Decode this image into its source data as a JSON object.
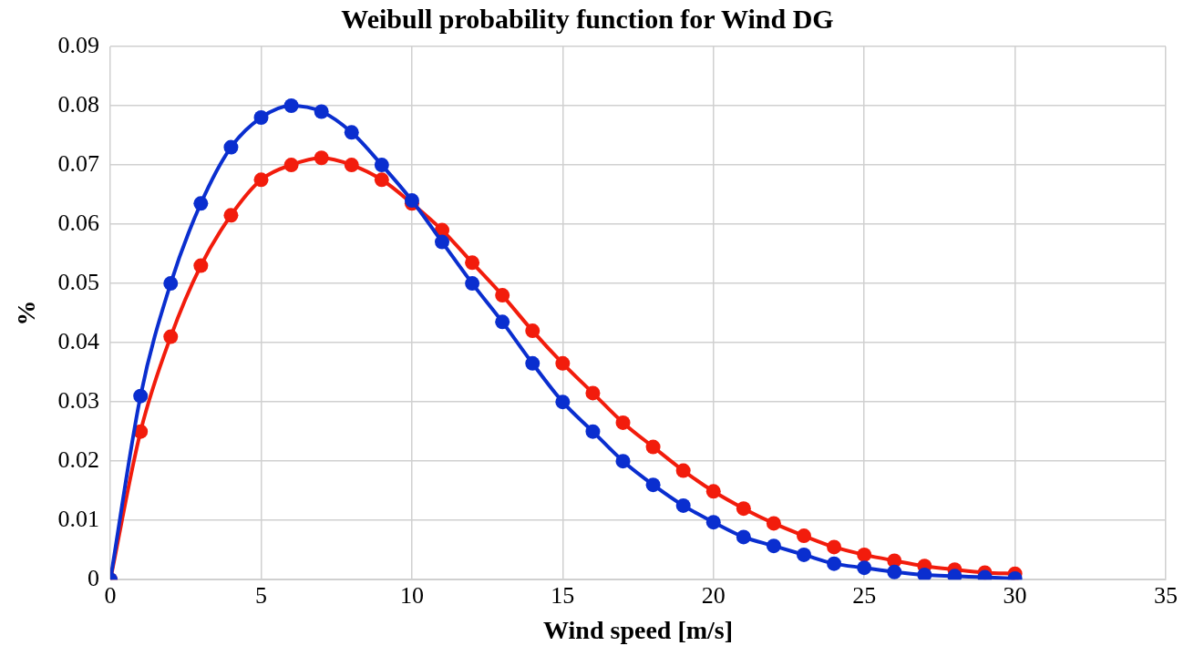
{
  "chart_data": {
    "type": "line",
    "title": "Weibull probability function for Wind DG",
    "xlabel": "Wind speed [m/s]",
    "ylabel": "%",
    "x": [
      0,
      1,
      2,
      3,
      4,
      5,
      6,
      7,
      8,
      9,
      10,
      11,
      12,
      13,
      14,
      15,
      16,
      17,
      18,
      19,
      20,
      21,
      22,
      23,
      24,
      25,
      26,
      27,
      28,
      29,
      30
    ],
    "series": [
      {
        "color": "#0a2ecf",
        "values": [
          0,
          0.031,
          0.05,
          0.0635,
          0.073,
          0.078,
          0.08,
          0.079,
          0.0755,
          0.07,
          0.064,
          0.057,
          0.05,
          0.0435,
          0.0365,
          0.03,
          0.025,
          0.02,
          0.016,
          0.0125,
          0.0097,
          0.0072,
          0.0057,
          0.0042,
          0.0027,
          0.002,
          0.0013,
          0.0008,
          0.0006,
          0.0004,
          0.0002
        ]
      },
      {
        "color": "#f21c0c",
        "values": [
          0,
          0.025,
          0.041,
          0.053,
          0.0615,
          0.0675,
          0.07,
          0.0712,
          0.07,
          0.0675,
          0.0635,
          0.059,
          0.0535,
          0.048,
          0.042,
          0.0365,
          0.0315,
          0.0265,
          0.0224,
          0.0184,
          0.0149,
          0.012,
          0.0095,
          0.0074,
          0.0055,
          0.0042,
          0.0032,
          0.0023,
          0.0017,
          0.0012,
          0.001
        ]
      }
    ],
    "xlim": [
      0,
      35
    ],
    "xticks": [
      0,
      5,
      10,
      15,
      20,
      25,
      30,
      35
    ],
    "ylim": [
      0,
      0.09
    ],
    "yticks": [
      0,
      0.01,
      0.02,
      0.03,
      0.04,
      0.05,
      0.06,
      0.07,
      0.08,
      0.09
    ],
    "grid": true,
    "legend": false,
    "marker": "circle",
    "line_style": "solid"
  }
}
